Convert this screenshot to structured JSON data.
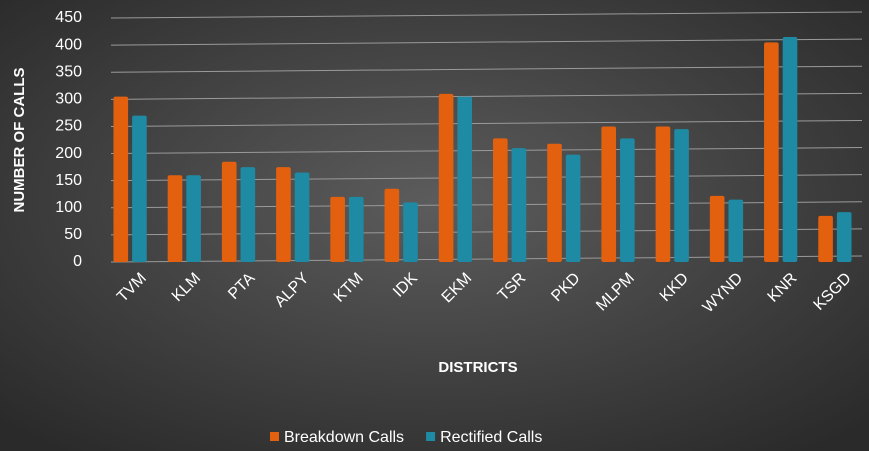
{
  "chart_data": {
    "type": "bar",
    "x_label": "DISTRICTS",
    "y_label": "NUMBER OF CALLS",
    "categories": [
      "TVM",
      "KLM",
      "PTA",
      "ALPY",
      "KTM",
      "IDK",
      "EKM",
      "TSR",
      "PKD",
      "MLPM",
      "KKD",
      "WYND",
      "KNR",
      "KSGD"
    ],
    "series": [
      {
        "name": "Breakdown Calls",
        "color": "#e3600f",
        "values": [
          305,
          160,
          185,
          175,
          120,
          135,
          310,
          228,
          218,
          250,
          250,
          122,
          405,
          85
        ]
      },
      {
        "name": "Rectified Calls",
        "color": "#1e8aa3",
        "values": [
          270,
          160,
          175,
          165,
          120,
          110,
          305,
          210,
          198,
          228,
          245,
          115,
          415,
          92
        ]
      }
    ],
    "ylim": [
      0,
      450
    ],
    "yticks": [
      0,
      50,
      100,
      150,
      200,
      250,
      300,
      350,
      400,
      450
    ],
    "grid": true,
    "legend": "bottom"
  }
}
